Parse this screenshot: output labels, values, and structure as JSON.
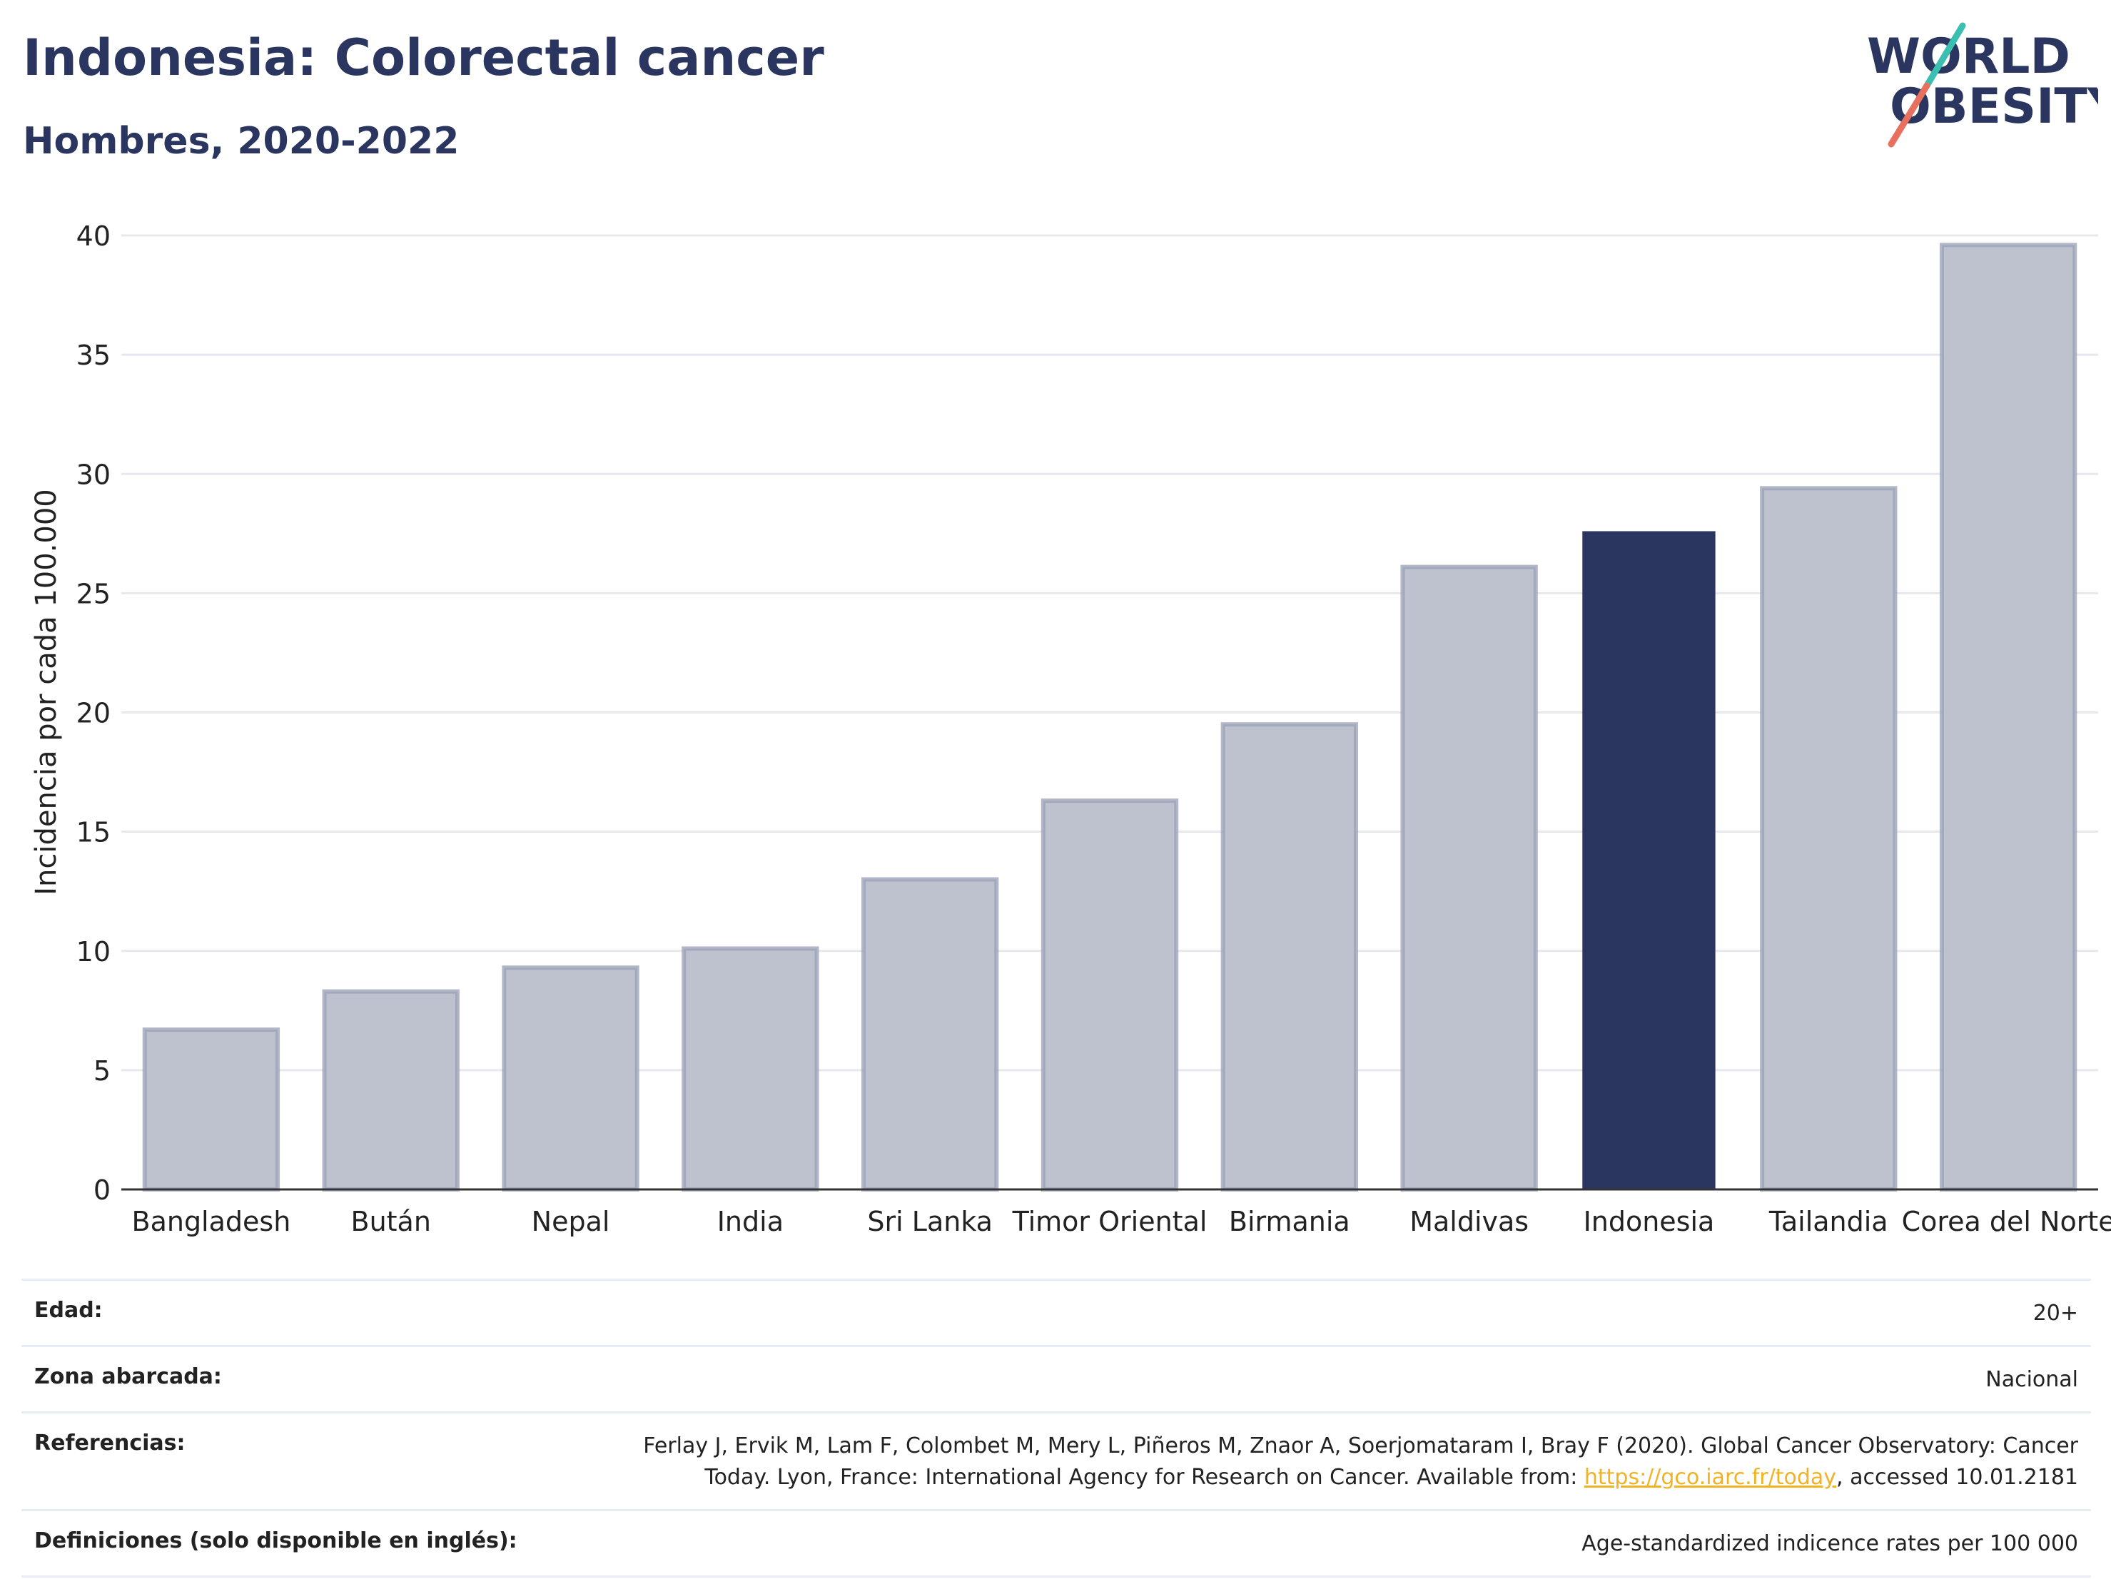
{
  "header": {
    "title": "Indonesia: Colorectal cancer",
    "subtitle": "Hombres, 2020-2022"
  },
  "logo": {
    "line1": "WORLD",
    "line2": "OBESITY"
  },
  "colors": {
    "title": "#2a365f",
    "bar_default": "#bec2ce",
    "bar_default_stroke": "#9aa0b6",
    "bar_highlight": "#2a365f",
    "grid": "#e6e8ee",
    "axis": "#333333",
    "logo_teal": "#3bbfb0",
    "logo_coral": "#e8705f",
    "link": "#f0b323"
  },
  "chart_data": {
    "type": "bar",
    "categories": [
      "Bangladesh",
      "Bután",
      "Nepal",
      "India",
      "Sri Lanka",
      "Timor Oriental",
      "Birmania",
      "Maldivas",
      "Indonesia",
      "Tailandia",
      "Corea del Norte"
    ],
    "values": [
      6.7,
      8.3,
      9.3,
      10.1,
      13.0,
      16.3,
      19.5,
      26.1,
      27.6,
      29.4,
      39.6
    ],
    "highlight": "Indonesia",
    "title": "",
    "xlabel": "",
    "ylabel": "Incidencia por cada 100.000",
    "ylim": [
      0,
      40
    ],
    "yticks": [
      0,
      5,
      10,
      15,
      20,
      25,
      30,
      35,
      40
    ],
    "grid": true
  },
  "info": {
    "age_label": "Edad:",
    "age_value": "20+",
    "zone_label": "Zona abarcada:",
    "zone_value": "Nacional",
    "ref_label": "Referencias:",
    "ref_line1": "Ferlay J, Ervik M, Lam F, Colombet M, Mery L, Piñeros M, Znaor A, Soerjomataram I, Bray F (2020). Global Cancer Observatory: Cancer",
    "ref_line2_pre": "Today. Lyon, France: International Agency for Research on Cancer. Available from: ",
    "ref_link": "https://gco.iarc.fr/today",
    "ref_line2_post": ", accessed 10.01.2181",
    "def_label": "Definiciones (solo disponible en inglés):",
    "def_value": "Age-standardized indicence rates per 100 000"
  }
}
